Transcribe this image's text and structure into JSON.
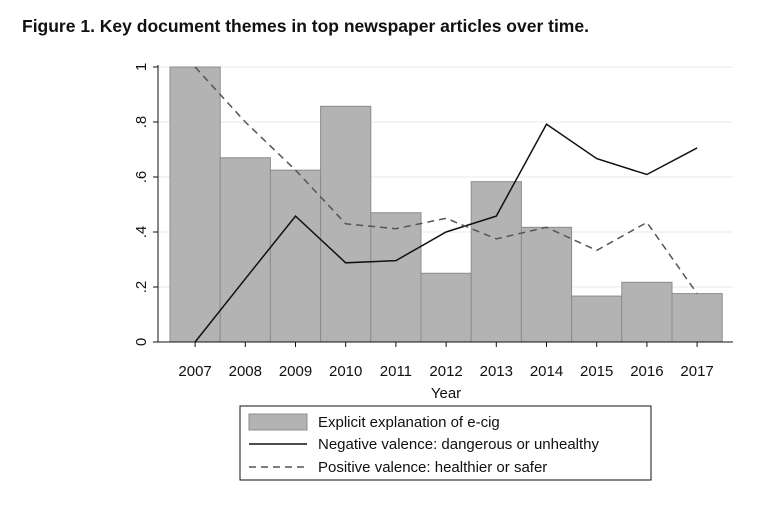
{
  "figure": {
    "title": "Figure 1.  Key document themes in top newspaper articles over time."
  },
  "chart_data": {
    "type": "bar",
    "categories": [
      "2007",
      "2008",
      "2009",
      "2010",
      "2011",
      "2012",
      "2013",
      "2014",
      "2015",
      "2016",
      "2017"
    ],
    "xlabel": "Year",
    "ylabel": "",
    "ylim": [
      0,
      1
    ],
    "yticks": [
      0,
      0.2,
      0.4,
      0.6,
      0.8,
      1
    ],
    "ytick_labels": [
      "0",
      ".2",
      ".4",
      ".6",
      ".8",
      "1"
    ],
    "grid": true,
    "legend_position": "bottom",
    "series": [
      {
        "name": "Explicit explanation of e-cig",
        "kind": "bar",
        "color": "#b3b3b3",
        "values": [
          1.0,
          0.67,
          0.625,
          0.857,
          0.47,
          0.25,
          0.583,
          0.417,
          0.167,
          0.217,
          0.176
        ]
      },
      {
        "name": "Negative valence: dangerous or unhealthy",
        "kind": "line",
        "style": "solid",
        "color": "#111111",
        "values": [
          0.0,
          0.23,
          0.458,
          0.288,
          0.296,
          0.4,
          0.458,
          0.792,
          0.667,
          0.609,
          0.706
        ]
      },
      {
        "name": "Positive valence: healthier or safer",
        "kind": "line",
        "style": "dashed",
        "color": "#555555",
        "values": [
          1.0,
          0.8,
          0.625,
          0.43,
          0.412,
          0.45,
          0.375,
          0.417,
          0.333,
          0.435,
          0.176
        ]
      }
    ]
  }
}
